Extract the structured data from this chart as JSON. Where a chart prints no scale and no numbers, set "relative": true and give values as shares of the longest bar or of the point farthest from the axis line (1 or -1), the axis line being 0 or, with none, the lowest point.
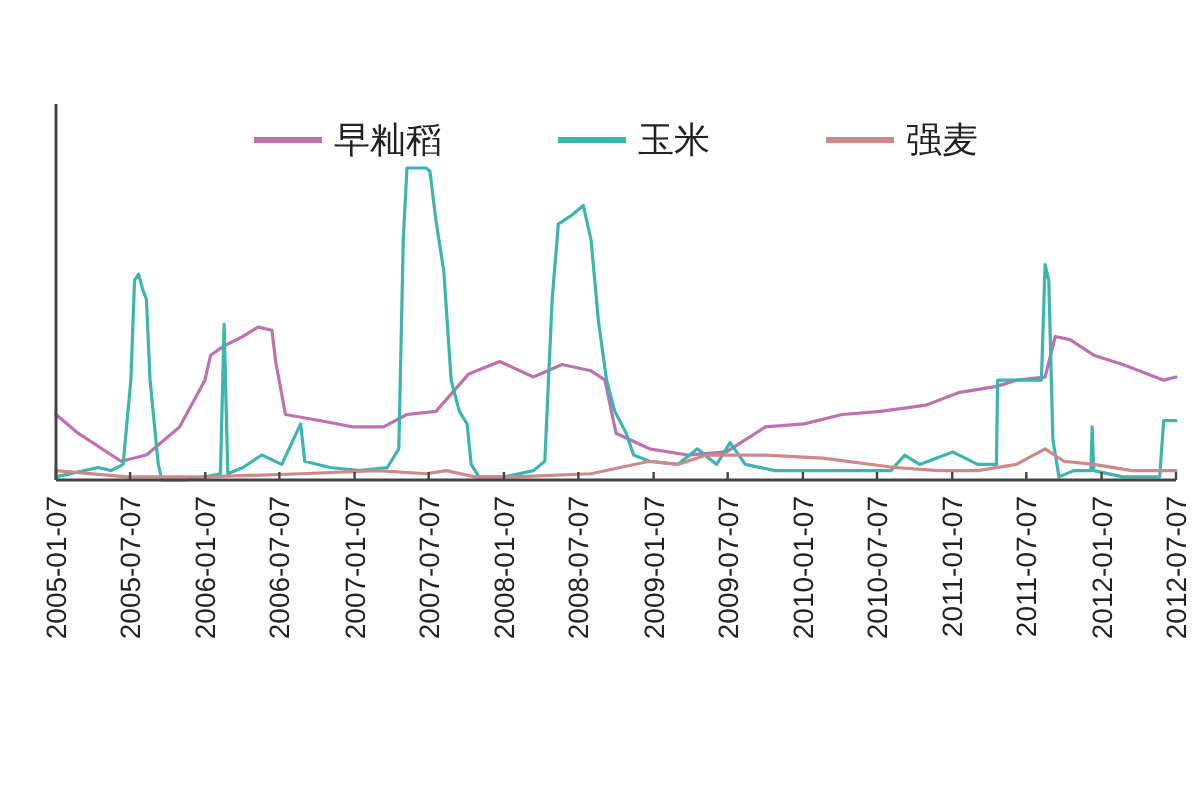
{
  "chart_data": {
    "type": "line",
    "relative": true,
    "legend": "top",
    "xlim": [
      "2005-01-07",
      "2012-07-07"
    ],
    "xticks": [
      "2005-01-07",
      "2005-07-07",
      "2006-01-07",
      "2006-07-07",
      "2007-01-07",
      "2007-07-07",
      "2008-01-07",
      "2008-07-07",
      "2009-01-07",
      "2009-07-07",
      "2010-01-07",
      "2010-07-07",
      "2011-01-07",
      "2011-07-07",
      "2012-01-07",
      "2012-07-07"
    ],
    "series": [
      {
        "name": "早籼稻",
        "color": "#c070b0",
        "x": [
          "2005-01-07",
          "2005-03-02",
          "2005-06-15",
          "2005-08-16",
          "2005-11-05",
          "2006-01-06",
          "2006-01-20",
          "2006-02-22",
          "2006-04-09",
          "2006-05-16",
          "2006-06-19",
          "2006-06-28",
          "2006-07-22",
          "2006-10-16",
          "2007-01-04",
          "2007-03-19",
          "2007-05-15",
          "2007-07-25",
          "2007-10-13",
          "2007-12-28",
          "2008-03-19",
          "2008-05-28",
          "2008-08-07",
          "2008-09-10",
          "2008-10-07",
          "2008-12-28",
          "2009-03-31",
          "2009-07-04",
          "2009-10-07",
          "2010-01-10",
          "2010-04-13",
          "2010-07-16",
          "2010-11-04",
          "2011-01-22",
          "2011-04-25",
          "2011-06-13",
          "2011-08-22",
          "2011-09-16",
          "2011-10-22",
          "2011-12-19",
          "2012-02-28",
          "2012-06-07",
          "2012-07-07"
        ],
        "values": [
          0.21,
          0.15,
          0.06,
          0.08,
          0.17,
          0.32,
          0.4,
          0.43,
          0.46,
          0.49,
          0.48,
          0.38,
          0.21,
          0.19,
          0.17,
          0.17,
          0.21,
          0.22,
          0.34,
          0.38,
          0.33,
          0.37,
          0.35,
          0.32,
          0.15,
          0.1,
          0.08,
          0.09,
          0.17,
          0.18,
          0.21,
          0.22,
          0.24,
          0.28,
          0.3,
          0.32,
          0.33,
          0.46,
          0.45,
          0.4,
          0.37,
          0.32,
          0.33
        ]
      },
      {
        "name": "玉米",
        "color": "#3cb4b0",
        "x": [
          "2005-01-07",
          "2005-04-20",
          "2005-05-22",
          "2005-06-20",
          "2005-07-09",
          "2005-07-18",
          "2005-07-28",
          "2005-08-07",
          "2005-08-16",
          "2005-08-25",
          "2005-09-14",
          "2005-09-23",
          "2005-11-19",
          "2006-01-06",
          "2006-02-13",
          "2006-02-22",
          "2006-03-03",
          "2006-04-09",
          "2006-05-25",
          "2006-07-13",
          "2006-08-28",
          "2006-09-07",
          "2006-11-08",
          "2007-01-19",
          "2007-03-28",
          "2007-04-25",
          "2007-05-06",
          "2007-05-15",
          "2007-06-08",
          "2007-07-01",
          "2007-07-10",
          "2007-07-25",
          "2007-08-13",
          "2007-08-31",
          "2007-09-20",
          "2007-10-09",
          "2007-10-19",
          "2007-11-07",
          "2008-01-07",
          "2008-03-19",
          "2008-04-16",
          "2008-05-04",
          "2008-05-19",
          "2008-06-22",
          "2008-07-19",
          "2008-08-07",
          "2008-08-25",
          "2008-09-14",
          "2008-10-04",
          "2008-11-01",
          "2008-11-19",
          "2008-12-28",
          "2009-03-07",
          "2009-04-24",
          "2009-06-10",
          "2009-07-13",
          "2009-08-19",
          "2009-10-31",
          "2010-02-25",
          "2010-08-10",
          "2010-09-13",
          "2010-10-19",
          "2011-01-08",
          "2011-03-10",
          "2011-04-25",
          "2011-04-28",
          "2011-08-13",
          "2011-08-22",
          "2011-08-31",
          "2011-09-10",
          "2011-09-25",
          "2011-10-31",
          "2011-12-12",
          "2011-12-15",
          "2011-12-19",
          "2012-02-28",
          "2012-05-28",
          "2012-06-07",
          "2012-07-07"
        ],
        "values": [
          0.01,
          0.04,
          0.03,
          0.05,
          0.32,
          0.64,
          0.66,
          0.61,
          0.58,
          0.32,
          0.05,
          0,
          0,
          0.01,
          0.02,
          0.5,
          0.02,
          0.04,
          0.08,
          0.05,
          0.18,
          0.06,
          0.04,
          0.03,
          0.04,
          0.1,
          0.77,
          1.0,
          1.0,
          1.0,
          0.99,
          0.83,
          0.67,
          0.32,
          0.22,
          0.18,
          0.05,
          0.01,
          0.01,
          0.03,
          0.06,
          0.58,
          0.82,
          0.85,
          0.88,
          0.77,
          0.51,
          0.32,
          0.22,
          0.15,
          0.08,
          0.06,
          0.05,
          0.1,
          0.05,
          0.12,
          0.05,
          0.03,
          0.03,
          0.03,
          0.08,
          0.05,
          0.09,
          0.05,
          0.05,
          0.32,
          0.32,
          0.69,
          0.64,
          0.13,
          0.01,
          0.03,
          0.03,
          0.17,
          0.03,
          0.01,
          0.01,
          0.19,
          0.19
        ]
      },
      {
        "name": "强麦",
        "color": "#d08888",
        "x": [
          "2005-01-07",
          "2005-06-29",
          "2006-01-06",
          "2006-08-28",
          "2007-03-04",
          "2007-07-01",
          "2007-08-19",
          "2007-10-28",
          "2008-01-31",
          "2008-08-07",
          "2008-12-28",
          "2009-03-07",
          "2009-05-16",
          "2009-10-07",
          "2010-02-25",
          "2010-08-19",
          "2010-12-04",
          "2011-03-10",
          "2011-06-13",
          "2011-08-22",
          "2011-10-07",
          "2011-12-19",
          "2012-03-22",
          "2012-07-07"
        ],
        "values": [
          0.03,
          0.01,
          0.01,
          0.02,
          0.03,
          0.02,
          0.03,
          0.01,
          0.01,
          0.02,
          0.06,
          0.05,
          0.08,
          0.08,
          0.07,
          0.04,
          0.03,
          0.03,
          0.05,
          0.1,
          0.06,
          0.05,
          0.03,
          0.03
        ]
      }
    ]
  }
}
